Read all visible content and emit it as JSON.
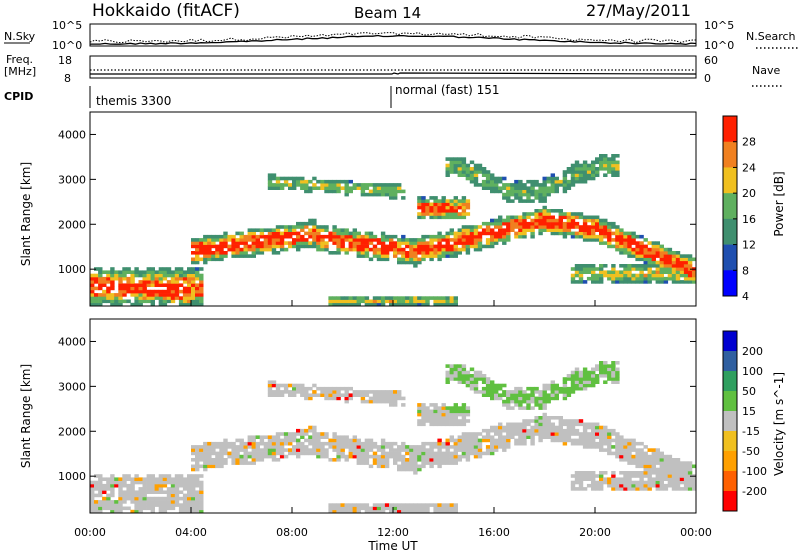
{
  "header": {
    "title": "Hokkaido (fitACF)",
    "beam": "Beam 14",
    "date": "27/May/2011"
  },
  "small_panels": {
    "nsky_label": "N.Sky",
    "nsearch_label": "N.Search",
    "freq_label": "Freq.",
    "freq_unit": "[MHz]",
    "nave_label": "Nave",
    "cpid_label": "CPID",
    "nsky_ticks": [
      "10^5",
      "10^0"
    ],
    "nsearch_ticks": [
      "10^5",
      "10^0"
    ],
    "freq_ticks": [
      "18",
      "8"
    ],
    "nave_ticks": [
      "60",
      "0"
    ]
  },
  "cpid_modes": [
    {
      "label": "themis 3300",
      "start": "00:00"
    },
    {
      "label": "normal (fast) 151",
      "start": "12:00"
    }
  ],
  "chart_data": [
    {
      "type": "heatmap",
      "title": "",
      "xlabel": "",
      "ylabel": "Slant Range [km]",
      "colorbar_label": "Power [dB]",
      "x_range": [
        "00:00",
        "24:00"
      ],
      "ylim": [
        180,
        4500
      ],
      "yticks": [
        "1000",
        "2000",
        "3000",
        "4000"
      ],
      "colorbar_ticks": [
        "4",
        "8",
        "12",
        "16",
        "20",
        "24",
        "28"
      ],
      "colorbar_range": [
        0,
        30
      ],
      "colors": [
        "#0000ff",
        "#1f4fb0",
        "#3f8f6f",
        "#5fb05f",
        "#f0c020",
        "#f08020",
        "#ff2000"
      ]
    },
    {
      "type": "heatmap",
      "title": "",
      "xlabel": "Time UT",
      "ylabel": "Slant Range [km]",
      "colorbar_label": "Velocity [m s^-1]",
      "x_range": [
        "00:00",
        "24:00"
      ],
      "ylim": [
        180,
        4500
      ],
      "yticks": [
        "1000",
        "2000",
        "3000",
        "4000"
      ],
      "xticks": [
        "00:00",
        "04:00",
        "08:00",
        "12:00",
        "16:00",
        "20:00",
        "00:00"
      ],
      "colorbar_ticks": [
        "200",
        "100",
        "50",
        "15",
        "-15",
        "-50",
        "-100",
        "-200"
      ],
      "colors": [
        "#ff0000",
        "#ff6000",
        "#ffa000",
        "#f0c020",
        "#c0c0c0",
        "#60c040",
        "#2f9f5f",
        "#2f5fa0",
        "#0000d0"
      ]
    }
  ]
}
